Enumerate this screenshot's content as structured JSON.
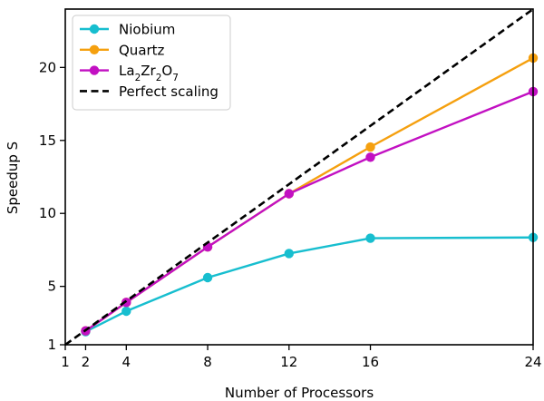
{
  "chart_data": {
    "type": "line",
    "xlabel": "Number of Processors",
    "ylabel": "Speedup S",
    "xlim": [
      1,
      24
    ],
    "ylim": [
      1,
      24
    ],
    "x_ticks": [
      1,
      2,
      4,
      8,
      12,
      16,
      24
    ],
    "y_ticks": [
      1,
      5,
      10,
      15,
      20
    ],
    "grid": false,
    "legend_position": "top-left",
    "series": [
      {
        "name": "Niobium",
        "color": "#17becf",
        "marker": "circle",
        "x": [
          2,
          4,
          8,
          12,
          16,
          24
        ],
        "y": [
          1.9,
          3.3,
          5.6,
          7.25,
          8.3,
          8.35
        ]
      },
      {
        "name": "Quartz",
        "color": "#f5a00f",
        "marker": "circle",
        "x": [
          2,
          4,
          8,
          12,
          16,
          24
        ],
        "y": [
          1.95,
          3.9,
          7.7,
          11.35,
          14.55,
          20.65
        ]
      },
      {
        "name": "La2Zr2O7",
        "color": "#c210c2",
        "marker": "circle",
        "x": [
          2,
          4,
          8,
          12,
          16,
          24
        ],
        "y": [
          1.95,
          3.9,
          7.7,
          11.35,
          13.85,
          18.35
        ]
      },
      {
        "name": "Perfect scaling",
        "color": "#000000",
        "dashed": true,
        "x": [
          1,
          24
        ],
        "y": [
          1,
          24
        ]
      }
    ]
  }
}
